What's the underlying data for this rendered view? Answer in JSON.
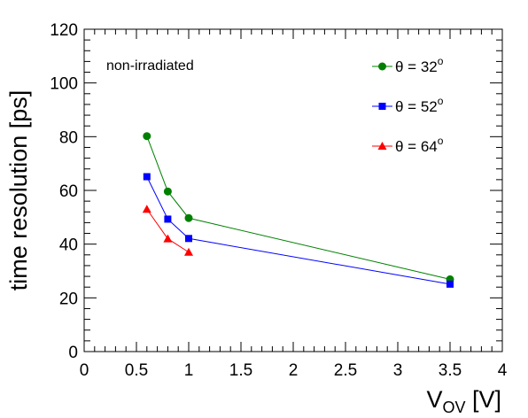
{
  "chart_data": {
    "type": "line",
    "annotation": "non-irradiated",
    "xlabel_main": "V",
    "xlabel_sub": "OV",
    "xlabel_unit": " [V]",
    "ylabel": "time resolution [ps]",
    "xlim": [
      0,
      4
    ],
    "ylim": [
      0,
      120
    ],
    "x_ticks": [
      "0",
      "0.5",
      "1",
      "1.5",
      "2",
      "2.5",
      "3",
      "3.5",
      "4"
    ],
    "y_ticks": [
      "0",
      "20",
      "40",
      "60",
      "80",
      "100",
      "120"
    ],
    "grid": false,
    "legend_position": "top-right",
    "series": [
      {
        "name": "θ = 32",
        "superscript": "o",
        "color": "#008000",
        "marker": "circle",
        "x": [
          0.6,
          0.8,
          1.0,
          3.5
        ],
        "y": [
          80.2,
          59.6,
          49.7,
          26.9
        ]
      },
      {
        "name": "θ = 52",
        "superscript": "o",
        "color": "#0000ff",
        "marker": "square",
        "x": [
          0.6,
          0.8,
          1.0,
          3.5
        ],
        "y": [
          65.1,
          49.3,
          42.1,
          25.1
        ]
      },
      {
        "name": "θ = 64",
        "superscript": "o",
        "color": "#ff0000",
        "marker": "triangle",
        "x": [
          0.6,
          0.8,
          1.0
        ],
        "y": [
          53.0,
          42.0,
          37.0
        ]
      }
    ]
  }
}
